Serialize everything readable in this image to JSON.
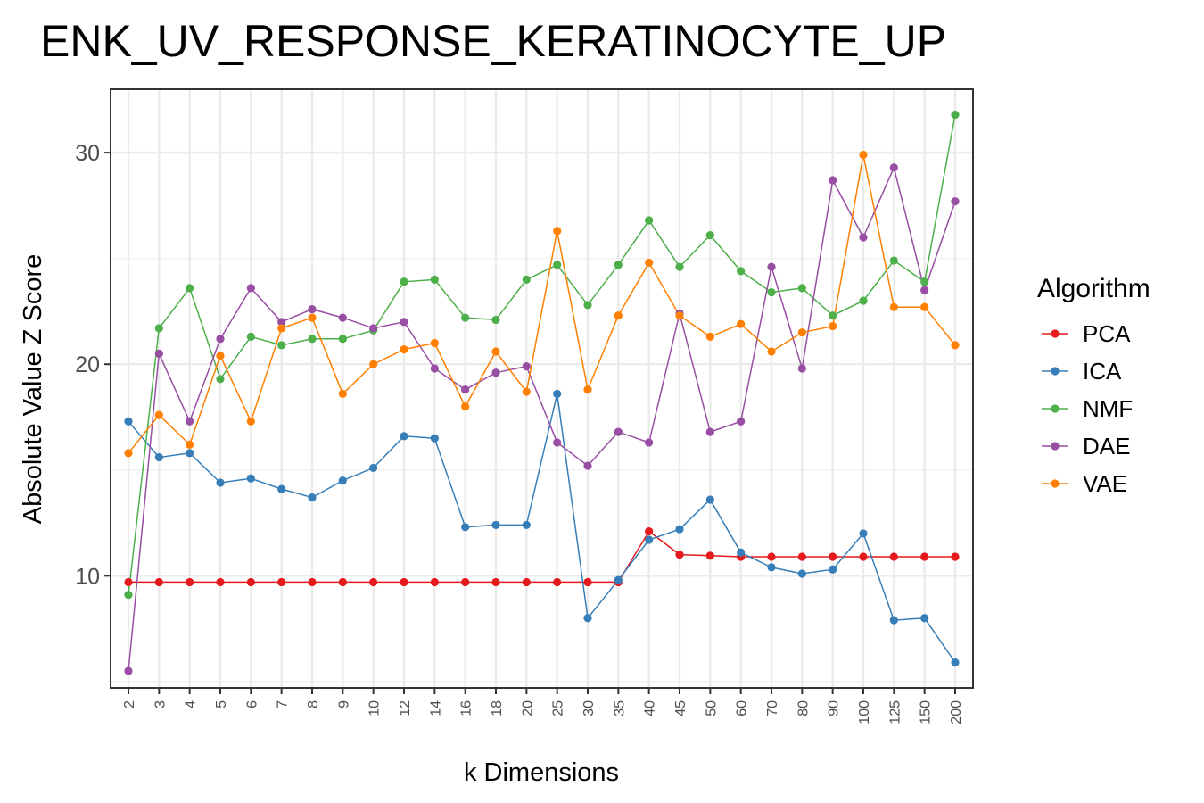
{
  "chart_data": {
    "type": "line",
    "title": "ENK_UV_RESPONSE_KERATINOCYTE_UP",
    "xlabel": "k Dimensions",
    "ylabel": "Absolute Value Z Score",
    "categories": [
      "2",
      "3",
      "4",
      "5",
      "6",
      "7",
      "8",
      "9",
      "10",
      "12",
      "14",
      "16",
      "18",
      "20",
      "25",
      "30",
      "35",
      "40",
      "45",
      "50",
      "60",
      "70",
      "80",
      "90",
      "100",
      "125",
      "150",
      "200"
    ],
    "ylim": [
      4.7,
      33.0
    ],
    "yticks": [
      10,
      20,
      30
    ],
    "grid": true,
    "legend": {
      "title": "Algorithm",
      "placement": "right"
    },
    "series": [
      {
        "name": "PCA",
        "color": "#e41a1c",
        "values": [
          9.7,
          9.7,
          9.7,
          9.7,
          9.7,
          9.7,
          9.7,
          9.7,
          9.7,
          9.7,
          9.7,
          9.7,
          9.7,
          9.7,
          9.7,
          9.7,
          9.7,
          12.1,
          11.0,
          10.95,
          10.9,
          10.9,
          10.9,
          10.9,
          10.9,
          10.9,
          10.9,
          10.9
        ]
      },
      {
        "name": "ICA",
        "color": "#377eb8",
        "values": [
          17.3,
          15.6,
          15.8,
          14.4,
          14.6,
          14.1,
          13.7,
          14.5,
          15.1,
          16.6,
          16.5,
          12.3,
          12.4,
          12.4,
          18.6,
          8.0,
          9.8,
          11.7,
          12.2,
          13.6,
          11.1,
          10.4,
          10.1,
          10.3,
          12.0,
          7.9,
          8.0,
          5.9
        ]
      },
      {
        "name": "NMF",
        "color": "#4daf4a",
        "values": [
          9.1,
          21.7,
          23.6,
          19.3,
          21.3,
          20.9,
          21.2,
          21.2,
          21.6,
          23.9,
          24.0,
          22.2,
          22.1,
          24.0,
          24.7,
          22.8,
          24.7,
          26.8,
          24.6,
          26.1,
          24.4,
          23.4,
          23.6,
          22.3,
          23.0,
          24.9,
          23.9,
          31.8
        ]
      },
      {
        "name": "DAE",
        "color": "#984ea3",
        "values": [
          5.5,
          20.5,
          17.3,
          21.2,
          23.6,
          22.0,
          22.6,
          22.2,
          21.7,
          22.0,
          19.8,
          18.8,
          19.6,
          19.9,
          16.3,
          15.2,
          16.8,
          16.3,
          22.4,
          16.8,
          17.3,
          24.6,
          19.8,
          28.7,
          26.0,
          29.3,
          23.5,
          27.7
        ]
      },
      {
        "name": "VAE",
        "color": "#ff7f00",
        "values": [
          15.8,
          17.6,
          16.2,
          20.4,
          17.3,
          21.7,
          22.2,
          18.6,
          20.0,
          20.7,
          21.0,
          18.0,
          20.6,
          18.7,
          26.3,
          18.8,
          22.3,
          24.8,
          22.3,
          21.3,
          21.9,
          20.6,
          21.5,
          21.8,
          29.9,
          22.7,
          22.7,
          20.9
        ]
      }
    ]
  }
}
